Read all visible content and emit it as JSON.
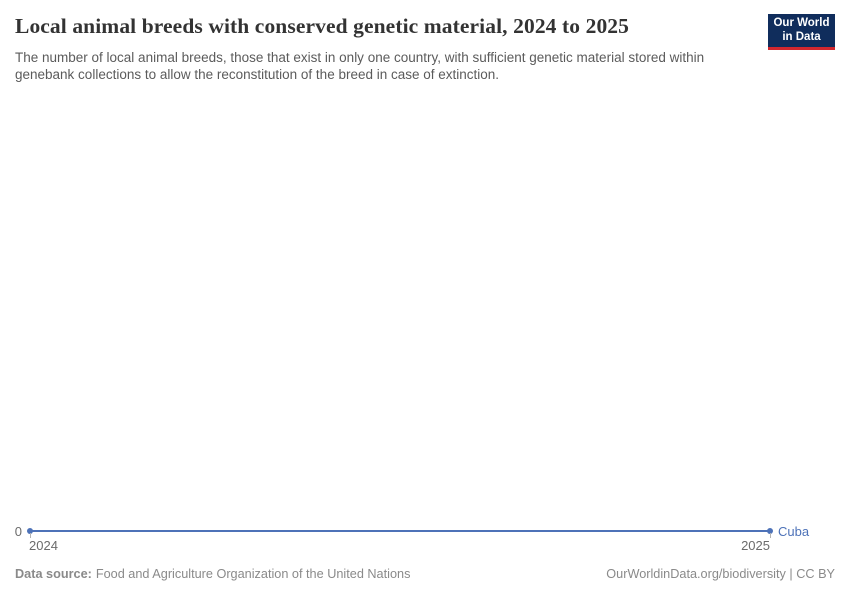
{
  "chart_data": {
    "type": "line",
    "title": "Local animal breeds with conserved genetic material, 2024 to 2025",
    "subtitle": "The number of local animal breeds, those that exist in only one country, with sufficient genetic material stored within genebank collections to allow the reconstitution of the breed in case of extinction.",
    "x": [
      2024,
      2025
    ],
    "series": [
      {
        "name": "Cuba",
        "values": [
          0,
          0
        ],
        "color": "#4d72b8"
      }
    ],
    "x_tick_labels": [
      "2024",
      "2025"
    ],
    "y_tick_labels": [
      "0"
    ],
    "xlim": [
      2024,
      2025
    ],
    "ylim": [
      0,
      0
    ],
    "xlabel": "",
    "ylabel": "",
    "grid": false,
    "end_markers": true,
    "legend_position": "right-of-line-end"
  },
  "logo": {
    "line1": "Our World",
    "line2": "in Data",
    "background_color": "#102d5c",
    "stripe_color": "#d3272e"
  },
  "footer": {
    "source_label": "Data source:",
    "source_text": "Food and Agriculture Organization of the United Nations",
    "credit": "OurWorldinData.org/biodiversity | CC BY"
  },
  "colors": {
    "line": "#4d72b8",
    "title_text": "#333333",
    "subtitle_text": "#5b5b5b",
    "axis_text": "#6b6b6b",
    "footer_text": "#8a8a8a"
  }
}
